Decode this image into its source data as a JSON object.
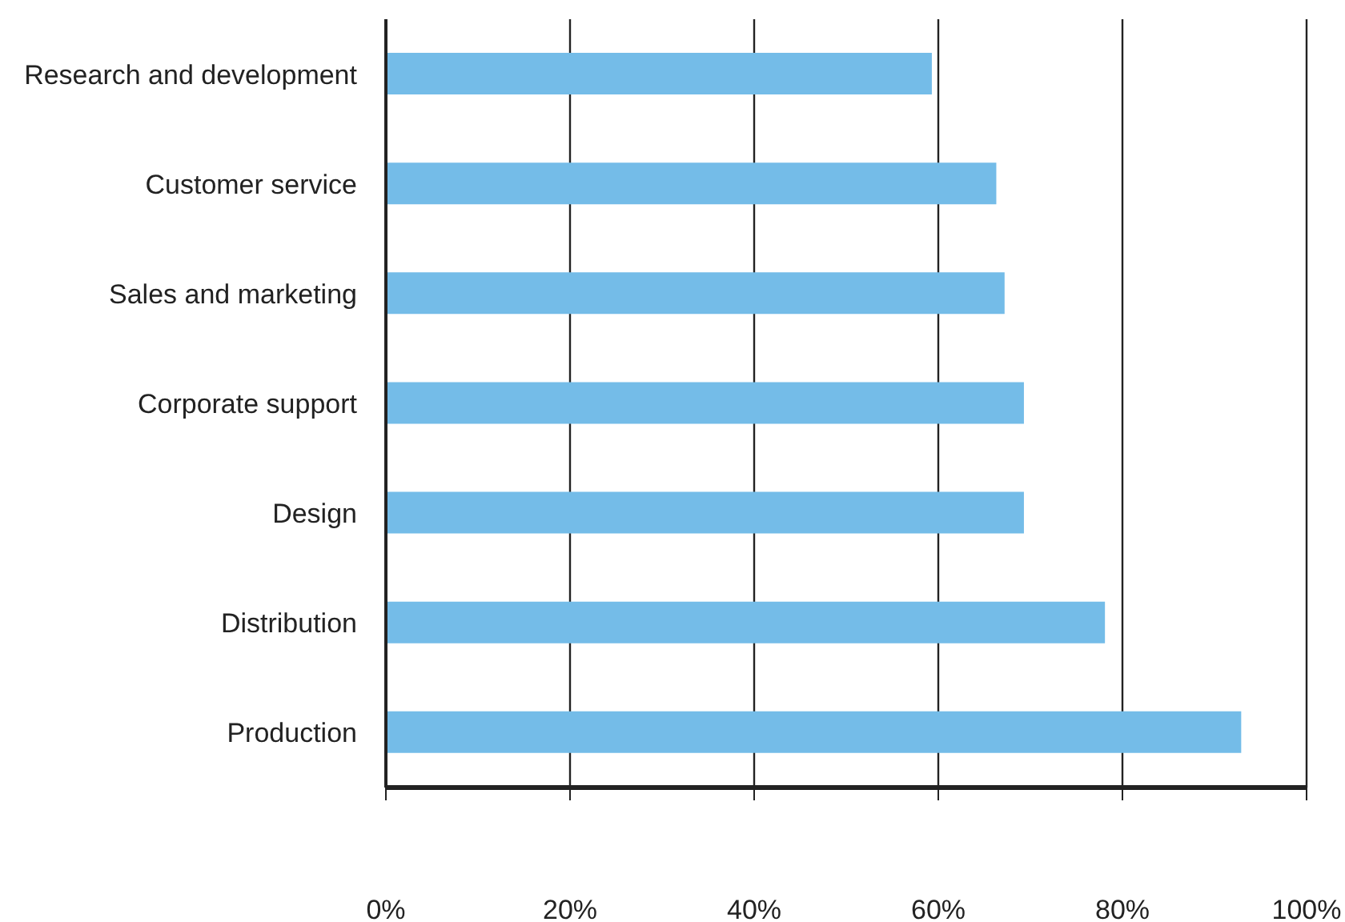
{
  "chart_data": {
    "type": "bar",
    "orientation": "horizontal",
    "categories": [
      "Research and development",
      "Customer service",
      "Sales and marketing",
      "Corporate support",
      "Design",
      "Distribution",
      "Production"
    ],
    "values": [
      59.3,
      66.3,
      67.2,
      69.3,
      69.3,
      78.1,
      92.9
    ],
    "color": "#74bce8",
    "xlim": [
      0,
      100
    ],
    "xticks": [
      {
        "value": 0,
        "label": "0%"
      },
      {
        "value": 20,
        "label": "20%"
      },
      {
        "value": 40,
        "label": "40%"
      },
      {
        "value": 60,
        "label": "60%"
      },
      {
        "value": 80,
        "label": "80%"
      },
      {
        "value": 100,
        "label": "100%"
      }
    ],
    "grid": "x",
    "legend": false
  }
}
